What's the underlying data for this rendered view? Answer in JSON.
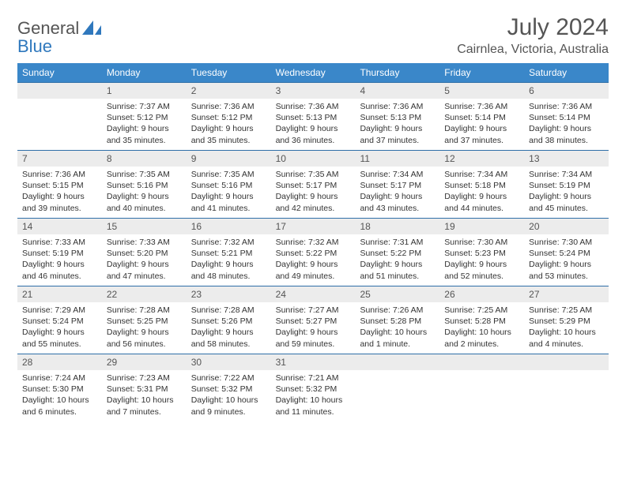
{
  "brand": {
    "word1": "General",
    "word2": "Blue"
  },
  "title": "July 2024",
  "location": "Cairnlea, Victoria, Australia",
  "colors": {
    "header_bg": "#3a87c9",
    "header_text": "#ffffff",
    "date_bg": "#ececec",
    "border": "#2f6fa8",
    "text": "#333333",
    "logo_blue": "#2f78bd"
  },
  "day_names": [
    "Sunday",
    "Monday",
    "Tuesday",
    "Wednesday",
    "Thursday",
    "Friday",
    "Saturday"
  ],
  "weeks": [
    [
      null,
      {
        "n": "1",
        "sr": "7:37 AM",
        "ss": "5:12 PM",
        "dl": "9 hours and 35 minutes."
      },
      {
        "n": "2",
        "sr": "7:36 AM",
        "ss": "5:12 PM",
        "dl": "9 hours and 35 minutes."
      },
      {
        "n": "3",
        "sr": "7:36 AM",
        "ss": "5:13 PM",
        "dl": "9 hours and 36 minutes."
      },
      {
        "n": "4",
        "sr": "7:36 AM",
        "ss": "5:13 PM",
        "dl": "9 hours and 37 minutes."
      },
      {
        "n": "5",
        "sr": "7:36 AM",
        "ss": "5:14 PM",
        "dl": "9 hours and 37 minutes."
      },
      {
        "n": "6",
        "sr": "7:36 AM",
        "ss": "5:14 PM",
        "dl": "9 hours and 38 minutes."
      }
    ],
    [
      {
        "n": "7",
        "sr": "7:36 AM",
        "ss": "5:15 PM",
        "dl": "9 hours and 39 minutes."
      },
      {
        "n": "8",
        "sr": "7:35 AM",
        "ss": "5:16 PM",
        "dl": "9 hours and 40 minutes."
      },
      {
        "n": "9",
        "sr": "7:35 AM",
        "ss": "5:16 PM",
        "dl": "9 hours and 41 minutes."
      },
      {
        "n": "10",
        "sr": "7:35 AM",
        "ss": "5:17 PM",
        "dl": "9 hours and 42 minutes."
      },
      {
        "n": "11",
        "sr": "7:34 AM",
        "ss": "5:17 PM",
        "dl": "9 hours and 43 minutes."
      },
      {
        "n": "12",
        "sr": "7:34 AM",
        "ss": "5:18 PM",
        "dl": "9 hours and 44 minutes."
      },
      {
        "n": "13",
        "sr": "7:34 AM",
        "ss": "5:19 PM",
        "dl": "9 hours and 45 minutes."
      }
    ],
    [
      {
        "n": "14",
        "sr": "7:33 AM",
        "ss": "5:19 PM",
        "dl": "9 hours and 46 minutes."
      },
      {
        "n": "15",
        "sr": "7:33 AM",
        "ss": "5:20 PM",
        "dl": "9 hours and 47 minutes."
      },
      {
        "n": "16",
        "sr": "7:32 AM",
        "ss": "5:21 PM",
        "dl": "9 hours and 48 minutes."
      },
      {
        "n": "17",
        "sr": "7:32 AM",
        "ss": "5:22 PM",
        "dl": "9 hours and 49 minutes."
      },
      {
        "n": "18",
        "sr": "7:31 AM",
        "ss": "5:22 PM",
        "dl": "9 hours and 51 minutes."
      },
      {
        "n": "19",
        "sr": "7:30 AM",
        "ss": "5:23 PM",
        "dl": "9 hours and 52 minutes."
      },
      {
        "n": "20",
        "sr": "7:30 AM",
        "ss": "5:24 PM",
        "dl": "9 hours and 53 minutes."
      }
    ],
    [
      {
        "n": "21",
        "sr": "7:29 AM",
        "ss": "5:24 PM",
        "dl": "9 hours and 55 minutes."
      },
      {
        "n": "22",
        "sr": "7:28 AM",
        "ss": "5:25 PM",
        "dl": "9 hours and 56 minutes."
      },
      {
        "n": "23",
        "sr": "7:28 AM",
        "ss": "5:26 PM",
        "dl": "9 hours and 58 minutes."
      },
      {
        "n": "24",
        "sr": "7:27 AM",
        "ss": "5:27 PM",
        "dl": "9 hours and 59 minutes."
      },
      {
        "n": "25",
        "sr": "7:26 AM",
        "ss": "5:28 PM",
        "dl": "10 hours and 1 minute."
      },
      {
        "n": "26",
        "sr": "7:25 AM",
        "ss": "5:28 PM",
        "dl": "10 hours and 2 minutes."
      },
      {
        "n": "27",
        "sr": "7:25 AM",
        "ss": "5:29 PM",
        "dl": "10 hours and 4 minutes."
      }
    ],
    [
      {
        "n": "28",
        "sr": "7:24 AM",
        "ss": "5:30 PM",
        "dl": "10 hours and 6 minutes."
      },
      {
        "n": "29",
        "sr": "7:23 AM",
        "ss": "5:31 PM",
        "dl": "10 hours and 7 minutes."
      },
      {
        "n": "30",
        "sr": "7:22 AM",
        "ss": "5:32 PM",
        "dl": "10 hours and 9 minutes."
      },
      {
        "n": "31",
        "sr": "7:21 AM",
        "ss": "5:32 PM",
        "dl": "10 hours and 11 minutes."
      },
      null,
      null,
      null
    ]
  ],
  "labels": {
    "sunrise": "Sunrise:",
    "sunset": "Sunset:",
    "daylight": "Daylight:"
  }
}
